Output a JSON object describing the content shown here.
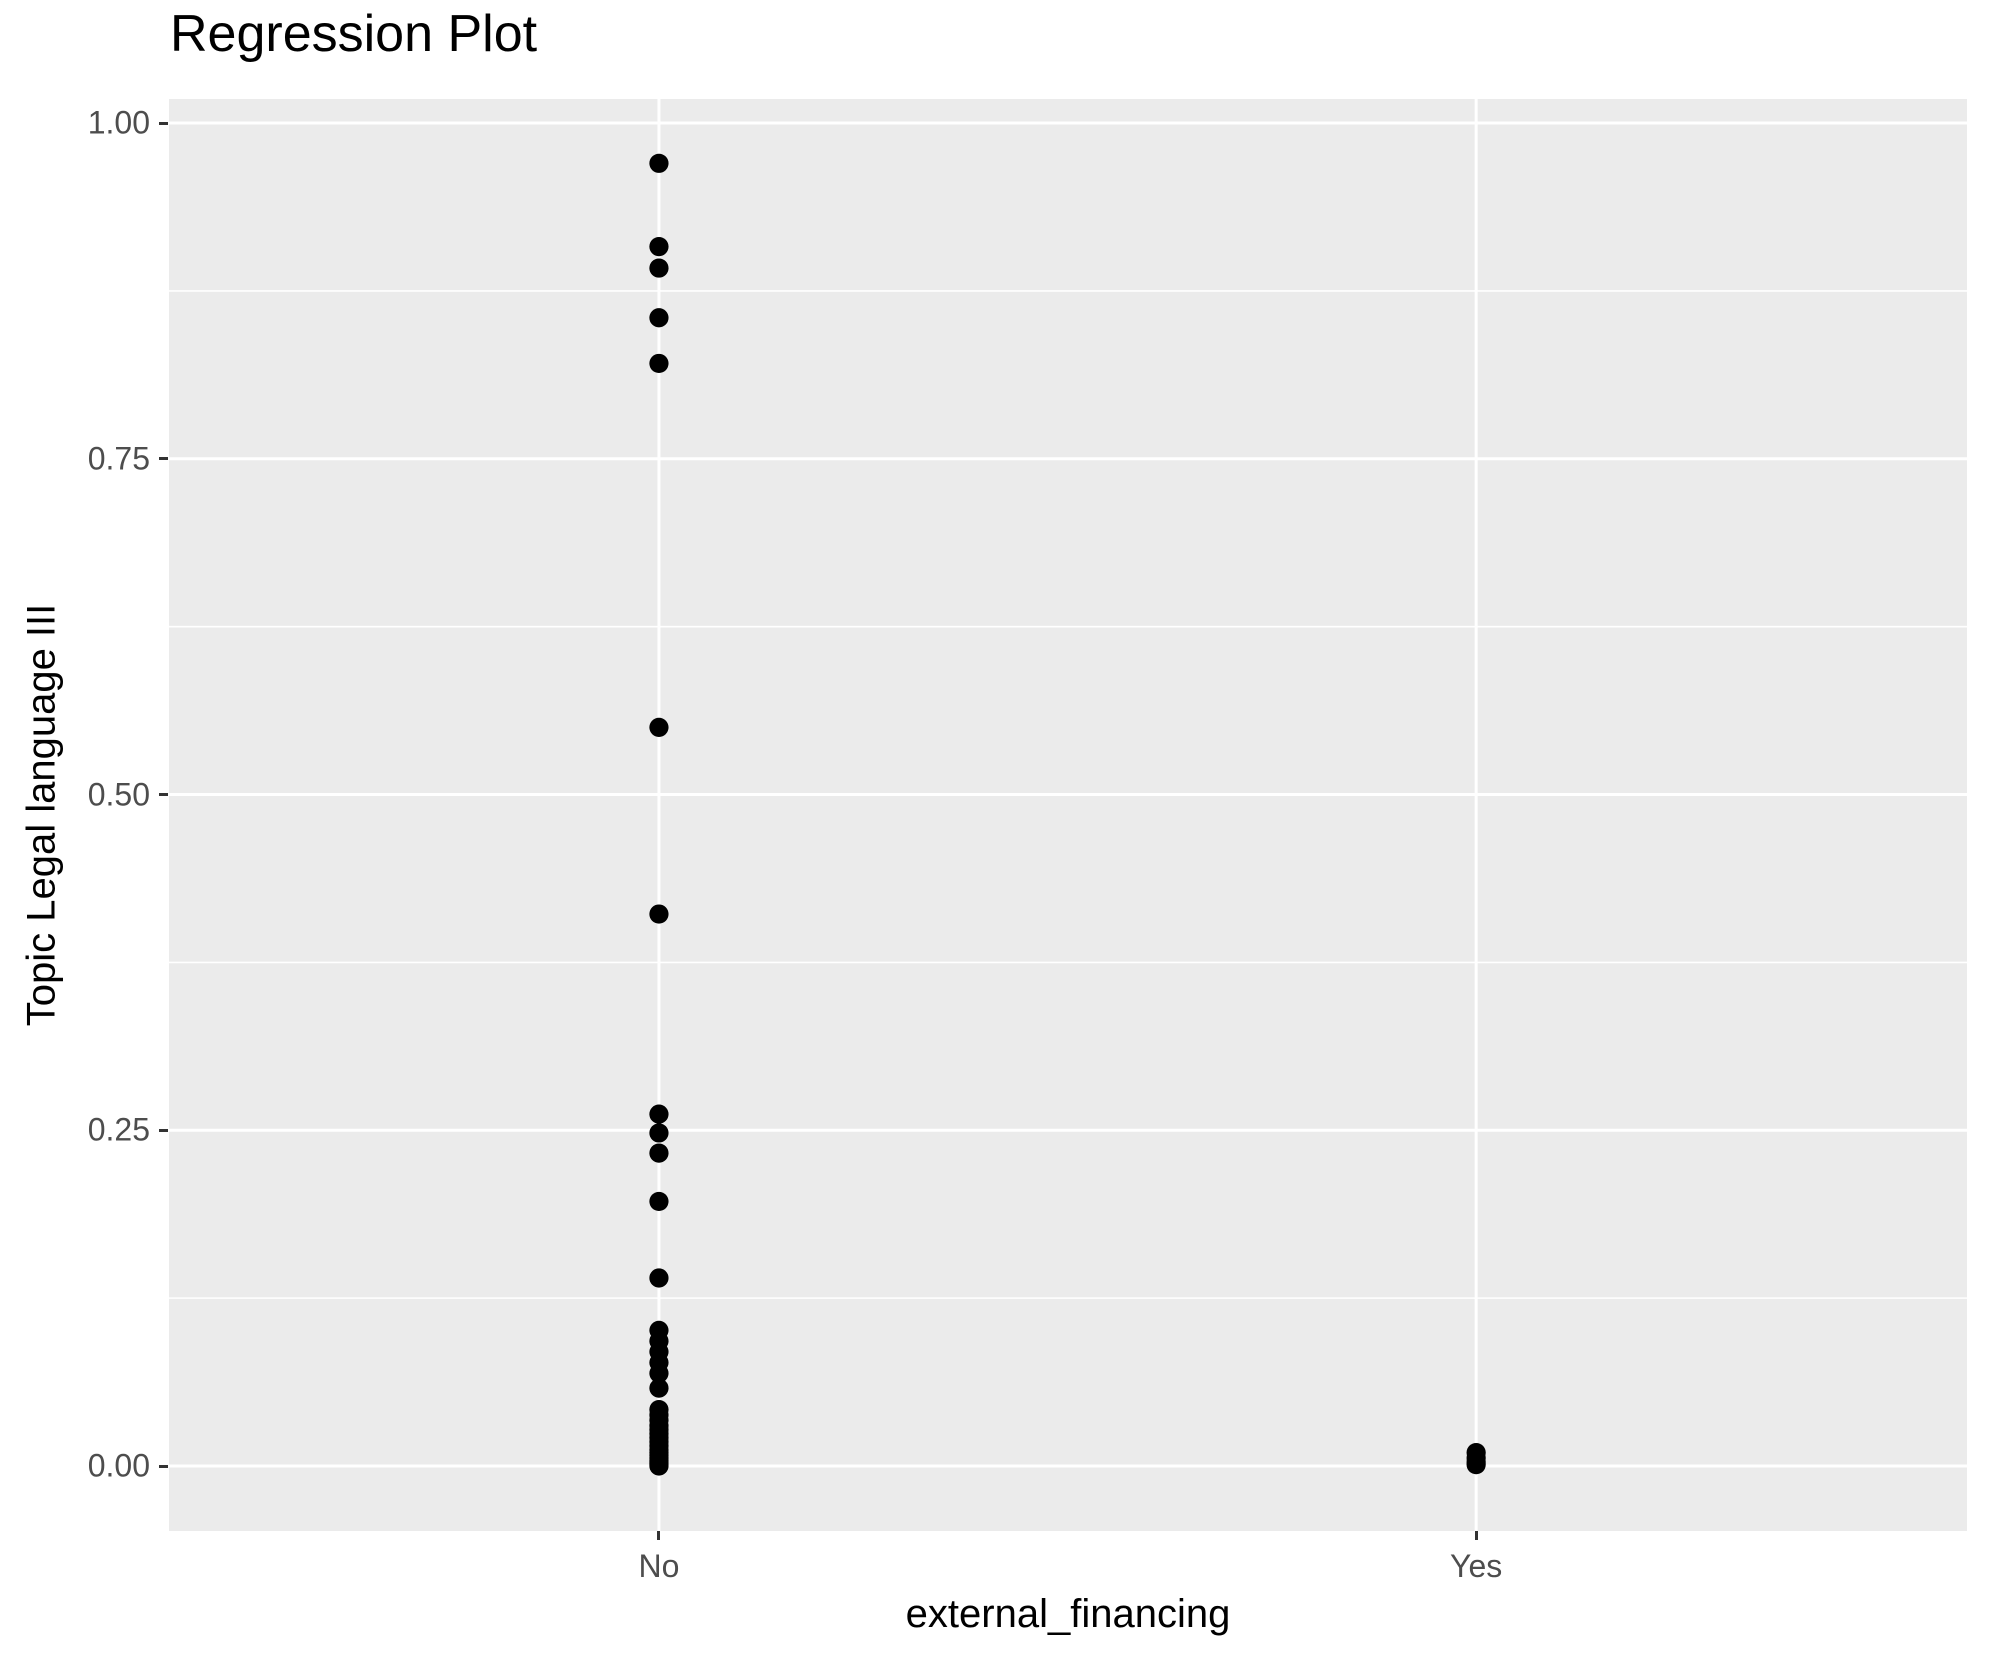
{
  "chart_data": {
    "type": "scatter",
    "title": "Regression Plot",
    "xlabel": "external_financing",
    "ylabel": "Topic Legal language III",
    "x_type": "categorical",
    "categories": [
      "No",
      "Yes"
    ],
    "category_positions": [
      0.2725,
      0.727
    ],
    "ylim": [
      -0.0484,
      1.0179
    ],
    "y_major_ticks": [
      {
        "value": 0.0,
        "label": "0.00"
      },
      {
        "value": 0.25,
        "label": "0.25"
      },
      {
        "value": 0.5,
        "label": "0.50"
      },
      {
        "value": 0.75,
        "label": "0.75"
      },
      {
        "value": 1.0,
        "label": "1.00"
      }
    ],
    "y_minor_values": [
      0.125,
      0.375,
      0.625,
      0.875
    ],
    "grid": "white major+minor horizontal lines, white vertical line at each category",
    "legend": "none",
    "series": [
      {
        "name": "No",
        "values": [
          0.97,
          0.908,
          0.892,
          0.855,
          0.821,
          0.55,
          0.411,
          0.262,
          0.248,
          0.233,
          0.197,
          0.14,
          0.101,
          0.093,
          0.085,
          0.077,
          0.069,
          0.058,
          0.042,
          0.038,
          0.034,
          0.03,
          0.027,
          0.024,
          0.021,
          0.018,
          0.015,
          0.012,
          0.01,
          0.008,
          0.006,
          0.004,
          0.003,
          0.002,
          0.001,
          0.0
        ]
      },
      {
        "name": "Yes",
        "values": [
          0.01,
          0.006,
          0.003,
          0.001
        ]
      }
    ],
    "style": {
      "panel_bg": "#EBEBEB",
      "grid_color": "#FFFFFF",
      "major_grid_width": 3,
      "minor_grid_width": 1.6,
      "point_color": "#000000",
      "point_radius_px": 9.6,
      "tick_label_color": "#4D4D4D",
      "tick_mark_color": "#333333",
      "title_color": "#000000"
    }
  }
}
